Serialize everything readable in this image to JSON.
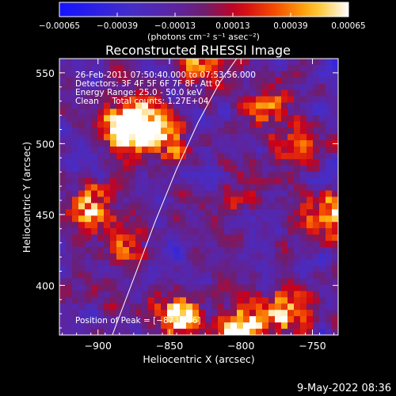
{
  "chart_data": {
    "type": "heatmap",
    "title": "Reconstructed RHESSI Image",
    "xlabel": "Heliocentric X (arcsec)",
    "ylabel": "Heliocentric Y (arcsec)",
    "xlim": [
      -927,
      -732
    ],
    "ylim": [
      365,
      560
    ],
    "xticks": [
      -900,
      -850,
      -800,
      -750
    ],
    "xtick_labels": [
      "−900",
      "−850",
      "−800",
      "−750"
    ],
    "yticks": [
      400,
      450,
      500,
      550
    ],
    "ytick_labels": [
      "400",
      "450",
      "500",
      "550"
    ],
    "colorbar": {
      "range": [
        -0.00065,
        0.00065
      ],
      "ticks": [
        -0.00065,
        -0.00039,
        -0.00013,
        0.00013,
        0.00039,
        0.00065
      ],
      "tick_labels": [
        "−0.00065",
        "−0.00039",
        "−0.00013",
        "0.00013",
        "0.00039",
        "0.00065"
      ],
      "unit_label": "(photons cm⁻² s⁻¹ asec⁻²)"
    },
    "annotations": [
      "26-Feb-2011 07:50:40.000 to 07:53:56.000",
      "Detectors: 3F 4F 5F 6F 7F 8F, Att 0",
      "Energy Range: 25.0 - 50.0 keV",
      "Clean     Total counts: 1.27E+04"
    ],
    "peak_label": "Position of Peak = [−873,506]",
    "peak": {
      "x": -873,
      "y": 506
    },
    "limb_curve": [
      {
        "x": -890,
        "y": 365
      },
      {
        "x": -875,
        "y": 405
      },
      {
        "x": -860,
        "y": 445
      },
      {
        "x": -845,
        "y": 482
      },
      {
        "x": -830,
        "y": 515
      },
      {
        "x": -815,
        "y": 543
      },
      {
        "x": -803,
        "y": 560
      }
    ],
    "hotspots": [
      {
        "x": -880,
        "y": 510,
        "amp": 1.1
      },
      {
        "x": -870,
        "y": 515,
        "amp": 0.9
      },
      {
        "x": -850,
        "y": 500,
        "amp": 0.6
      },
      {
        "x": -905,
        "y": 455,
        "amp": 0.8
      },
      {
        "x": -880,
        "y": 425,
        "amp": 0.5
      },
      {
        "x": -845,
        "y": 378,
        "amp": 1.0
      },
      {
        "x": -800,
        "y": 372,
        "amp": 1.0
      },
      {
        "x": -770,
        "y": 380,
        "amp": 0.8
      },
      {
        "x": -780,
        "y": 525,
        "amp": 0.7
      },
      {
        "x": -765,
        "y": 500,
        "amp": 0.5
      },
      {
        "x": -740,
        "y": 450,
        "amp": 1.0
      },
      {
        "x": -800,
        "y": 465,
        "amp": 0.4
      },
      {
        "x": -830,
        "y": 555,
        "amp": 0.6
      }
    ]
  },
  "footer": {
    "date": "9-May-2022 08:36"
  }
}
